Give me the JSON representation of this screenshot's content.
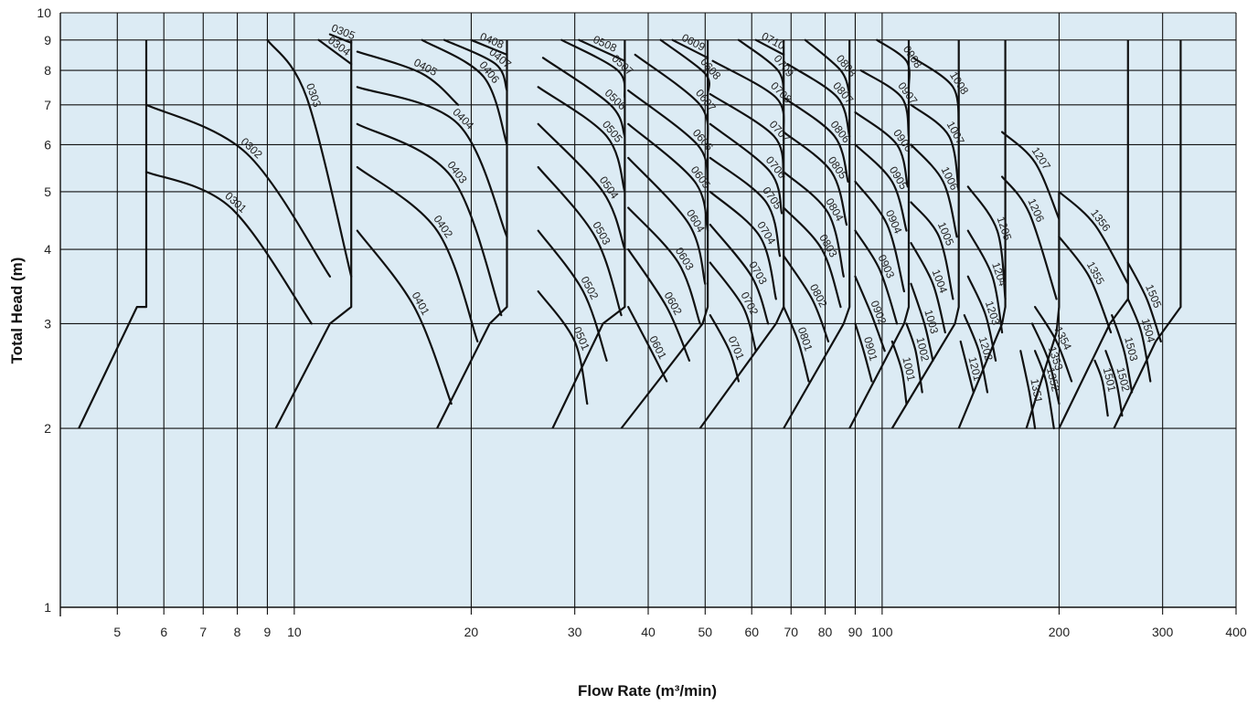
{
  "chart_data": {
    "type": "line",
    "title": "",
    "xlabel": "Flow Rate (m³/min)",
    "ylabel": "Total Head (m)",
    "xscale": "log",
    "yscale": "log",
    "xlim": [
      4,
      400
    ],
    "ylim": [
      1,
      10
    ],
    "grid": true,
    "x_ticks": [
      "5",
      "6",
      "7",
      "8",
      "9",
      "10",
      "20",
      "30",
      "40",
      "50",
      "60",
      "70",
      "80",
      "90",
      "100",
      "200",
      "300",
      "400"
    ],
    "y_ticks": [
      "1",
      "2",
      "3",
      "4",
      "5",
      "6",
      "7",
      "8",
      "9",
      "10"
    ],
    "colors": {
      "background": "#dcebf4",
      "line": "#111111"
    },
    "series": [
      {
        "name": "0301",
        "x": [
          5.6,
          7.8,
          10.7
        ],
        "y": [
          5.4,
          4.7,
          3.0
        ]
      },
      {
        "name": "0302",
        "x": [
          5.6,
          8.3,
          11.5
        ],
        "y": [
          7.0,
          5.8,
          3.6
        ]
      },
      {
        "name": "0303",
        "x": [
          9.0,
          10.5,
          12.5
        ],
        "y": [
          9.0,
          7.2,
          3.6
        ]
      },
      {
        "name": "0304",
        "x": [
          11.0,
          12.5
        ],
        "y": [
          9.0,
          8.2
        ]
      },
      {
        "name": "0305",
        "x": [
          11.5,
          12.5
        ],
        "y": [
          9.2,
          8.9
        ]
      },
      {
        "name": "0401",
        "x": [
          12.8,
          16.0,
          18.5
        ],
        "y": [
          4.3,
          3.2,
          2.2
        ]
      },
      {
        "name": "0402",
        "x": [
          12.8,
          17.5,
          20.5
        ],
        "y": [
          5.5,
          4.3,
          2.8
        ]
      },
      {
        "name": "0403",
        "x": [
          12.8,
          18.5,
          22.5
        ],
        "y": [
          6.5,
          5.3,
          3.1
        ]
      },
      {
        "name": "0404",
        "x": [
          12.8,
          19.0,
          23.0
        ],
        "y": [
          7.5,
          6.5,
          4.2
        ]
      },
      {
        "name": "0405",
        "x": [
          12.8,
          16.5,
          19.0
        ],
        "y": [
          8.6,
          7.9,
          7.0
        ]
      },
      {
        "name": "0406",
        "x": [
          16.5,
          21.0,
          23.0
        ],
        "y": [
          9.0,
          7.8,
          6.0
        ]
      },
      {
        "name": "0407",
        "x": [
          18.0,
          22.0,
          23.0
        ],
        "y": [
          9.0,
          8.2,
          7.4
        ]
      },
      {
        "name": "0408",
        "x": [
          20.0,
          23.0
        ],
        "y": [
          9.0,
          8.5
        ]
      },
      {
        "name": "0501",
        "x": [
          26.0,
          30.0,
          31.5
        ],
        "y": [
          3.4,
          2.8,
          2.2
        ]
      },
      {
        "name": "0502",
        "x": [
          26.0,
          31.0,
          34.0
        ],
        "y": [
          4.3,
          3.4,
          2.6
        ]
      },
      {
        "name": "0503",
        "x": [
          26.0,
          32.5,
          36.0
        ],
        "y": [
          5.5,
          4.2,
          3.1
        ]
      },
      {
        "name": "0504",
        "x": [
          26.0,
          33.5,
          36.5
        ],
        "y": [
          6.5,
          5.0,
          4.0
        ]
      },
      {
        "name": "0505",
        "x": [
          26.0,
          34.0,
          36.5
        ],
        "y": [
          7.5,
          6.2,
          5.0
        ]
      },
      {
        "name": "0506",
        "x": [
          26.5,
          34.5,
          36.5
        ],
        "y": [
          8.4,
          7.0,
          6.2
        ]
      },
      {
        "name": "0507",
        "x": [
          28.5,
          35.5,
          36.5
        ],
        "y": [
          9.0,
          8.0,
          7.2
        ]
      },
      {
        "name": "0508",
        "x": [
          30.5,
          36.5
        ],
        "y": [
          9.0,
          8.3
        ]
      },
      {
        "name": "0601",
        "x": [
          37.0,
          40.5,
          43.0
        ],
        "y": [
          3.2,
          2.7,
          2.4
        ]
      },
      {
        "name": "0602",
        "x": [
          37.0,
          43.0,
          47.0
        ],
        "y": [
          4.0,
          3.2,
          2.6
        ]
      },
      {
        "name": "0603",
        "x": [
          37.0,
          45.0,
          49.0
        ],
        "y": [
          4.7,
          3.8,
          3.0
        ]
      },
      {
        "name": "0604",
        "x": [
          37.0,
          47.0,
          50.0
        ],
        "y": [
          5.7,
          4.4,
          3.5
        ]
      },
      {
        "name": "0605",
        "x": [
          37.0,
          48.0,
          50.5
        ],
        "y": [
          6.5,
          5.2,
          4.3
        ]
      },
      {
        "name": "0606",
        "x": [
          37.0,
          48.5,
          50.5
        ],
        "y": [
          7.4,
          6.0,
          5.2
        ]
      },
      {
        "name": "0607",
        "x": [
          38.0,
          49.0,
          50.5
        ],
        "y": [
          8.5,
          7.0,
          6.0
        ]
      },
      {
        "name": "0608",
        "x": [
          42.0,
          50.0,
          50.5
        ],
        "y": [
          9.0,
          7.9,
          7.3
        ]
      },
      {
        "name": "0609",
        "x": [
          44.0,
          50.5
        ],
        "y": [
          9.0,
          8.4
        ]
      },
      {
        "name": "0701",
        "x": [
          51.0,
          55.0,
          57.0
        ],
        "y": [
          3.1,
          2.7,
          2.4
        ]
      },
      {
        "name": "0702",
        "x": [
          51.0,
          58.0,
          61.0
        ],
        "y": [
          3.8,
          3.2,
          2.7
        ]
      },
      {
        "name": "0703",
        "x": [
          51.0,
          60.0,
          64.0
        ],
        "y": [
          4.4,
          3.6,
          3.0
        ]
      },
      {
        "name": "0704",
        "x": [
          51.0,
          62.0,
          66.0
        ],
        "y": [
          5.0,
          4.2,
          3.3
        ]
      },
      {
        "name": "0705",
        "x": [
          51.0,
          63.5,
          67.0
        ],
        "y": [
          5.7,
          4.8,
          3.9
        ]
      },
      {
        "name": "0706",
        "x": [
          51.0,
          64.5,
          67.5
        ],
        "y": [
          6.5,
          5.4,
          4.6
        ]
      },
      {
        "name": "0707",
        "x": [
          51.0,
          65.5,
          68.0
        ],
        "y": [
          7.3,
          6.2,
          5.3
        ]
      },
      {
        "name": "0708",
        "x": [
          51.5,
          66.0,
          68.0
        ],
        "y": [
          8.3,
          7.2,
          6.3
        ]
      },
      {
        "name": "0709",
        "x": [
          57.0,
          66.5,
          68.0
        ],
        "y": [
          9.0,
          8.0,
          7.2
        ]
      },
      {
        "name": "0710",
        "x": [
          61.0,
          68.0
        ],
        "y": [
          9.0,
          8.5
        ]
      },
      {
        "name": "0801",
        "x": [
          68.0,
          72.0,
          75.0
        ],
        "y": [
          3.2,
          2.8,
          2.4
        ]
      },
      {
        "name": "0802",
        "x": [
          68.0,
          76.0,
          81.0
        ],
        "y": [
          3.9,
          3.3,
          2.8
        ]
      },
      {
        "name": "0803",
        "x": [
          68.0,
          79.0,
          85.0
        ],
        "y": [
          4.7,
          4.0,
          3.2
        ]
      },
      {
        "name": "0804",
        "x": [
          68.0,
          81.0,
          86.0
        ],
        "y": [
          5.4,
          4.6,
          3.6
        ]
      },
      {
        "name": "0805",
        "x": [
          68.0,
          82.0,
          87.0
        ],
        "y": [
          6.3,
          5.4,
          4.4
        ]
      },
      {
        "name": "0806",
        "x": [
          68.0,
          83.0,
          87.5
        ],
        "y": [
          7.2,
          6.2,
          5.2
        ]
      },
      {
        "name": "0807",
        "x": [
          69.0,
          84.0,
          88.0
        ],
        "y": [
          8.2,
          7.2,
          6.2
        ]
      },
      {
        "name": "0808",
        "x": [
          74.0,
          85.0,
          88.0
        ],
        "y": [
          9.0,
          8.0,
          7.3
        ]
      },
      {
        "name": "0901",
        "x": [
          90.0,
          93.0,
          96.0
        ],
        "y": [
          3.0,
          2.7,
          2.4
        ]
      },
      {
        "name": "0902",
        "x": [
          90.0,
          96.0,
          101.0
        ],
        "y": [
          3.6,
          3.1,
          2.7
        ]
      },
      {
        "name": "0903",
        "x": [
          90.0,
          99.0,
          106.0
        ],
        "y": [
          4.3,
          3.7,
          3.0
        ]
      },
      {
        "name": "0904",
        "x": [
          90.0,
          102.0,
          109.0
        ],
        "y": [
          5.2,
          4.4,
          3.4
        ]
      },
      {
        "name": "0905",
        "x": [
          90.0,
          104.0,
          110.0
        ],
        "y": [
          6.0,
          5.2,
          4.3
        ]
      },
      {
        "name": "0906",
        "x": [
          90.0,
          106.0,
          110.5
        ],
        "y": [
          6.8,
          6.0,
          5.1
        ]
      },
      {
        "name": "0907",
        "x": [
          92.0,
          108.0,
          111.0
        ],
        "y": [
          8.0,
          7.2,
          6.2
        ]
      },
      {
        "name": "0908",
        "x": [
          98.0,
          110.0,
          111.0
        ],
        "y": [
          9.0,
          8.3,
          7.5
        ]
      },
      {
        "name": "1001",
        "x": [
          104.0,
          108.0,
          110.0
        ],
        "y": [
          2.8,
          2.5,
          2.2
        ]
      },
      {
        "name": "1002",
        "x": [
          110.0,
          114.0,
          117.0
        ],
        "y": [
          3.0,
          2.7,
          2.3
        ]
      },
      {
        "name": "1003",
        "x": [
          112.0,
          118.0,
          122.0
        ],
        "y": [
          3.5,
          3.0,
          2.6
        ]
      },
      {
        "name": "1004",
        "x": [
          112.0,
          122.0,
          128.0
        ],
        "y": [
          4.1,
          3.5,
          2.9
        ]
      },
      {
        "name": "1005",
        "x": [
          112.0,
          125.0,
          132.0
        ],
        "y": [
          4.8,
          4.2,
          3.3
        ]
      },
      {
        "name": "1006",
        "x": [
          112.0,
          127.0,
          134.0
        ],
        "y": [
          6.0,
          5.2,
          4.2
        ]
      },
      {
        "name": "1007",
        "x": [
          112.0,
          130.0,
          135.0
        ],
        "y": [
          7.0,
          6.2,
          5.0
        ]
      },
      {
        "name": "1008",
        "x": [
          113.0,
          132.0,
          135.0
        ],
        "y": [
          8.4,
          7.5,
          6.4
        ]
      },
      {
        "name": "1201",
        "x": [
          136.0,
          140.0,
          143.0
        ],
        "y": [
          2.8,
          2.5,
          2.3
        ]
      },
      {
        "name": "1202",
        "x": [
          138.0,
          146.0,
          151.0
        ],
        "y": [
          3.1,
          2.7,
          2.3
        ]
      },
      {
        "name": "1203",
        "x": [
          140.0,
          150.0,
          156.0
        ],
        "y": [
          3.6,
          3.1,
          2.6
        ]
      },
      {
        "name": "1204",
        "x": [
          140.0,
          154.0,
          160.0
        ],
        "y": [
          4.3,
          3.6,
          2.9
        ]
      },
      {
        "name": "1205",
        "x": [
          140.0,
          157.0,
          162.0
        ],
        "y": [
          5.1,
          4.3,
          3.3
        ]
      },
      {
        "name": "1206",
        "x": [
          160.0,
          178.0,
          198.0
        ],
        "y": [
          5.3,
          4.6,
          3.3
        ]
      },
      {
        "name": "1207",
        "x": [
          160.0,
          182.0,
          200.0
        ],
        "y": [
          6.3,
          5.6,
          4.5
        ]
      },
      {
        "name": "1351",
        "x": [
          172.0,
          178.0,
          182.0
        ],
        "y": [
          2.7,
          2.3,
          2.0
        ]
      },
      {
        "name": "1352",
        "x": [
          182.0,
          190.0,
          196.0
        ],
        "y": [
          2.7,
          2.4,
          2.0
        ]
      },
      {
        "name": "1353",
        "x": [
          180.0,
          192.0,
          200.0
        ],
        "y": [
          3.0,
          2.6,
          2.2
        ]
      },
      {
        "name": "1354",
        "x": [
          182.0,
          198.0,
          210.0
        ],
        "y": [
          3.2,
          2.8,
          2.4
        ]
      },
      {
        "name": "1355",
        "x": [
          200.0,
          225.0,
          245.0
        ],
        "y": [
          4.2,
          3.6,
          2.9
        ]
      },
      {
        "name": "1356",
        "x": [
          200.0,
          230.0,
          262.0
        ],
        "y": [
          5.0,
          4.4,
          3.5
        ]
      },
      {
        "name": "1501",
        "x": [
          230.0,
          237.0,
          242.0
        ],
        "y": [
          2.6,
          2.4,
          2.1
        ]
      },
      {
        "name": "1502",
        "x": [
          240.0,
          250.0,
          256.0
        ],
        "y": [
          2.7,
          2.4,
          2.1
        ]
      },
      {
        "name": "1503",
        "x": [
          246.0,
          258.0,
          266.0
        ],
        "y": [
          3.1,
          2.7,
          2.3
        ]
      },
      {
        "name": "1504",
        "x": [
          262.0,
          276.0,
          286.0
        ],
        "y": [
          3.3,
          2.9,
          2.4
        ]
      },
      {
        "name": "1505",
        "x": [
          262.0,
          282.0,
          298.0
        ],
        "y": [
          3.8,
          3.3,
          2.8
        ]
      }
    ],
    "boundaries": [
      {
        "x": [
          4.3,
          5.4,
          5.6,
          5.6
        ],
        "y": [
          2.0,
          3.2,
          3.2,
          9.0
        ]
      },
      {
        "x": [
          9.3,
          11.5,
          12.5,
          12.5
        ],
        "y": [
          2.0,
          3.0,
          3.2,
          9.0
        ]
      },
      {
        "x": [
          17.5,
          21.5,
          23.0,
          23.0
        ],
        "y": [
          2.0,
          3.0,
          3.2,
          9.0
        ]
      },
      {
        "x": [
          27.5,
          33.5,
          36.5,
          36.5
        ],
        "y": [
          2.0,
          3.0,
          3.2,
          9.0
        ]
      },
      {
        "x": [
          36.0,
          49.5,
          50.5,
          50.5
        ],
        "y": [
          2.0,
          3.0,
          3.2,
          9.0
        ]
      },
      {
        "x": [
          49.0,
          66.0,
          68.0,
          68.0
        ],
        "y": [
          2.0,
          3.0,
          3.2,
          9.0
        ]
      },
      {
        "x": [
          68.0,
          86.0,
          88.0,
          88.0
        ],
        "y": [
          2.0,
          3.0,
          3.2,
          9.0
        ]
      },
      {
        "x": [
          88.0,
          109.0,
          111.0,
          111.0
        ],
        "y": [
          2.0,
          3.0,
          3.2,
          9.0
        ]
      },
      {
        "x": [
          104.0,
          133.0,
          135.0,
          135.0
        ],
        "y": [
          2.0,
          3.0,
          3.2,
          9.0
        ]
      },
      {
        "x": [
          135.0,
          160.0,
          162.0,
          162.0
        ],
        "y": [
          2.0,
          3.0,
          3.2,
          9.0
        ]
      },
      {
        "x": [
          176.0,
          198.0,
          200.0,
          200.0
        ],
        "y": [
          2.0,
          2.9,
          3.2,
          5.0
        ]
      },
      {
        "x": [
          200.0,
          244.0,
          262.0,
          262.0
        ],
        "y": [
          2.0,
          3.0,
          3.3,
          9.0
        ]
      },
      {
        "x": [
          248.0,
          292.0,
          322.0,
          322.0
        ],
        "y": [
          2.0,
          2.8,
          3.2,
          9.0
        ]
      }
    ]
  }
}
